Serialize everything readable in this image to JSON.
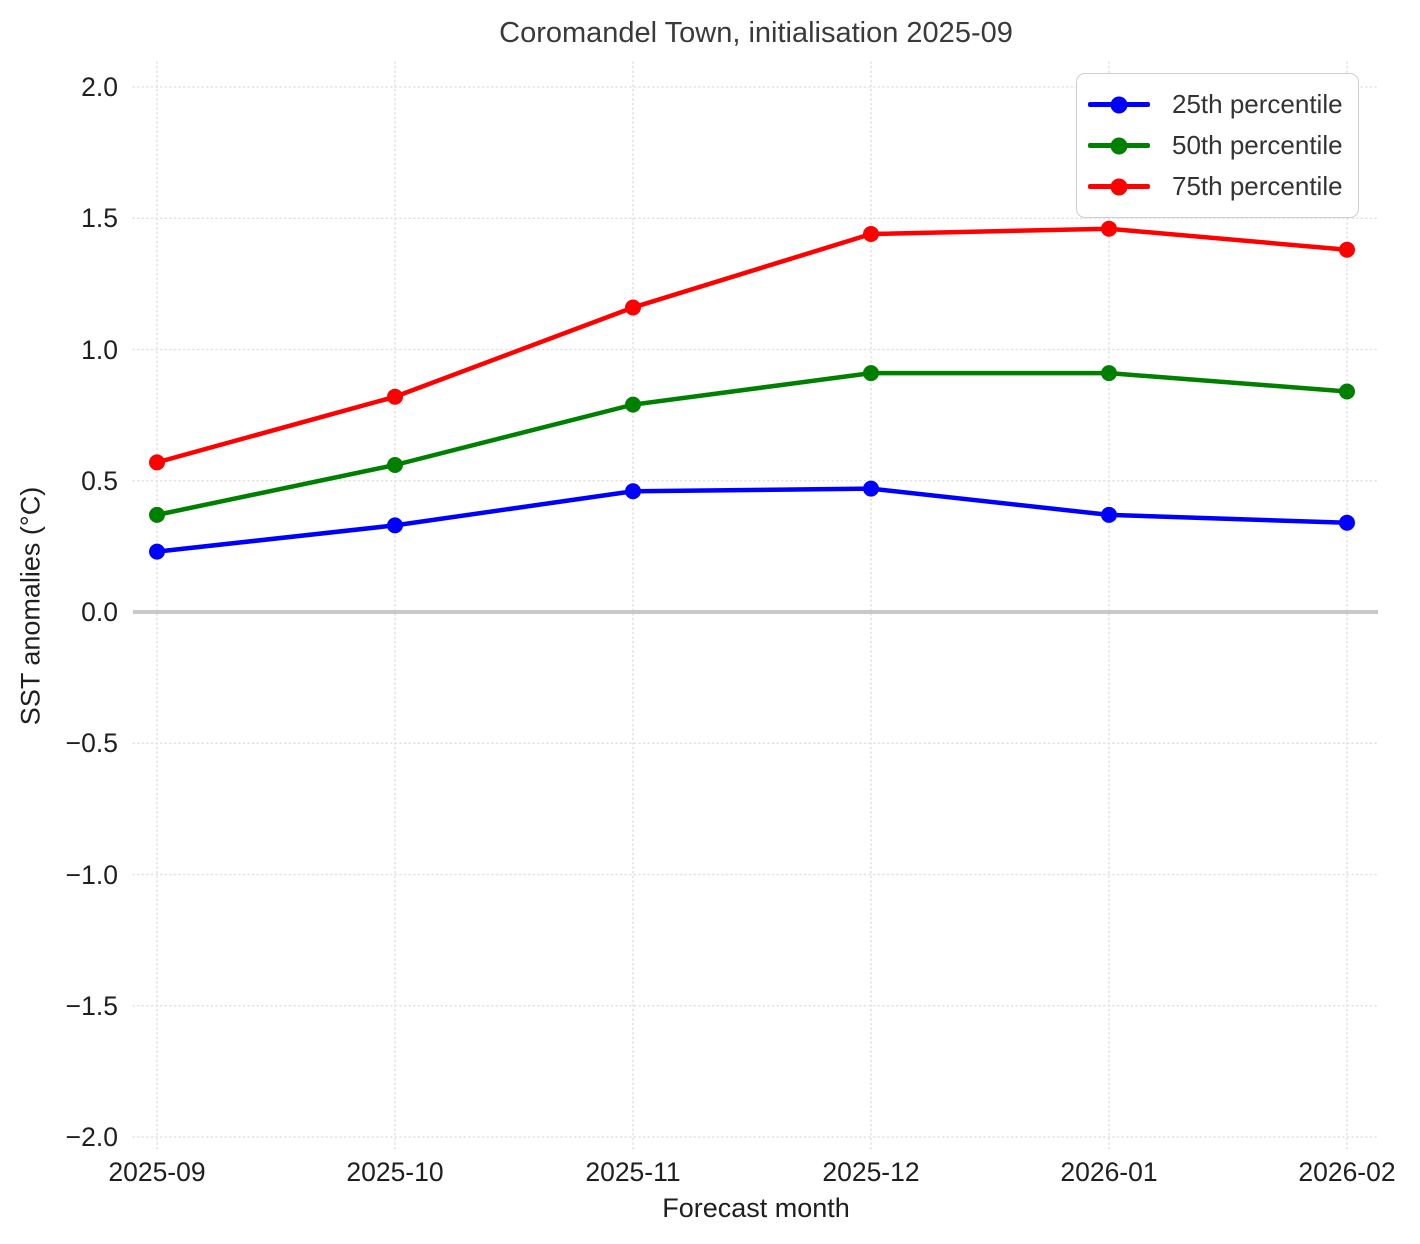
{
  "chart_data": {
    "type": "line",
    "title": "Coromandel Town, initialisation 2025-09",
    "xlabel": "Forecast month",
    "ylabel": "SST anomalies (°C)",
    "categories": [
      "2025-09",
      "2025-10",
      "2025-11",
      "2025-12",
      "2026-01",
      "2026-02"
    ],
    "ylim": [
      -2.0,
      2.0
    ],
    "yticks": [
      2.0,
      1.5,
      1.0,
      0.5,
      0.0,
      -0.5,
      -1.0,
      -1.5,
      -2.0
    ],
    "ytick_labels": [
      "2.0",
      "1.5",
      "1.0",
      "0.5",
      "0.0",
      "−0.5",
      "−1.0",
      "−1.5",
      "−2.0"
    ],
    "grid": "dotted, horizontal and vertical at every tick",
    "zero_line": true,
    "legend_position": "upper right",
    "series": [
      {
        "name": "25th percentile",
        "color": "#0000ff",
        "values": [
          0.23,
          0.33,
          0.46,
          0.47,
          0.37,
          0.34
        ]
      },
      {
        "name": "50th percentile",
        "color": "#008000",
        "values": [
          0.37,
          0.56,
          0.79,
          0.91,
          0.91,
          0.84
        ]
      },
      {
        "name": "75th percentile",
        "color": "#ff0000",
        "values": [
          0.57,
          0.82,
          1.16,
          1.44,
          1.46,
          1.38
        ]
      }
    ],
    "colors": {
      "grid": "#e3e3e3",
      "zero_line": "#c8c8c8",
      "text": "#1f1f1f",
      "legend_border": "#cfcfcf"
    }
  }
}
